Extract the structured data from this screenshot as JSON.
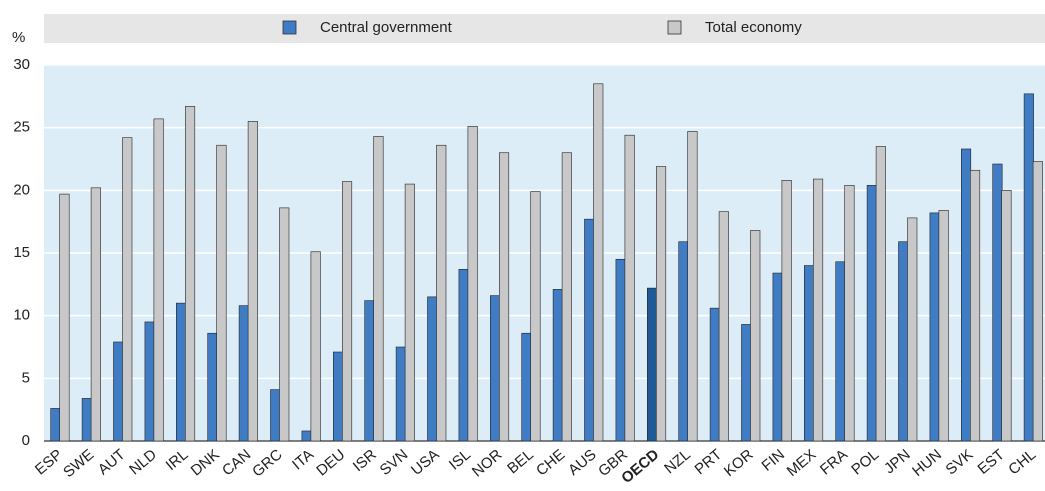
{
  "chart_data": {
    "type": "bar",
    "y_axis_label": "%",
    "categories": [
      "ESP",
      "SWE",
      "AUT",
      "NLD",
      "IRL",
      "DNK",
      "CAN",
      "GRC",
      "ITA",
      "DEU",
      "ISR",
      "SVN",
      "USA",
      "ISL",
      "NOR",
      "BEL",
      "CHE",
      "AUS",
      "GBR",
      "OECD",
      "NZL",
      "PRT",
      "KOR",
      "FIN",
      "MEX",
      "FRA",
      "POL",
      "JPN",
      "HUN",
      "SVK",
      "EST",
      "CHL"
    ],
    "series": [
      {
        "name": "Central government",
        "color": "#3f7cc4",
        "colors": [
          "#3f7cc4",
          "#3f7cc4",
          "#3f7cc4",
          "#3f7cc4",
          "#3f7cc4",
          "#3f7cc4",
          "#3f7cc4",
          "#3f7cc4",
          "#3f7cc4",
          "#3f7cc4",
          "#3f7cc4",
          "#3f7cc4",
          "#3f7cc4",
          "#3f7cc4",
          "#3f7cc4",
          "#3f7cc4",
          "#3f7cc4",
          "#3f7cc4",
          "#3f7cc4",
          "#1d5a96",
          "#3f7cc4",
          "#3f7cc4",
          "#3f7cc4",
          "#3f7cc4",
          "#3f7cc4",
          "#3f7cc4",
          "#3f7cc4",
          "#3f7cc4",
          "#3f7cc4",
          "#3f7cc4",
          "#3f7cc4",
          "#3f7cc4"
        ],
        "values": [
          2.6,
          3.4,
          7.9,
          9.5,
          11.0,
          8.6,
          10.8,
          4.1,
          0.8,
          7.1,
          11.2,
          7.5,
          11.5,
          13.7,
          11.6,
          8.6,
          12.1,
          17.7,
          14.5,
          12.2,
          15.9,
          10.6,
          9.3,
          13.4,
          14.0,
          14.3,
          20.4,
          15.9,
          18.2,
          23.3,
          22.1,
          27.7
        ]
      },
      {
        "name": "Total economy",
        "color": "#c8c8c8",
        "values": [
          19.7,
          20.2,
          24.2,
          25.7,
          26.7,
          23.6,
          25.5,
          18.6,
          15.1,
          20.7,
          24.3,
          20.5,
          23.6,
          25.1,
          23.0,
          19.9,
          23.0,
          28.5,
          24.4,
          21.9,
          24.7,
          18.3,
          16.8,
          20.8,
          20.9,
          20.4,
          23.5,
          17.8,
          18.4,
          21.6,
          20.0,
          22.3
        ]
      }
    ],
    "ylim": [
      0,
      30
    ],
    "yticks": [
      0,
      5,
      10,
      15,
      20,
      25,
      30
    ],
    "grid": true
  }
}
